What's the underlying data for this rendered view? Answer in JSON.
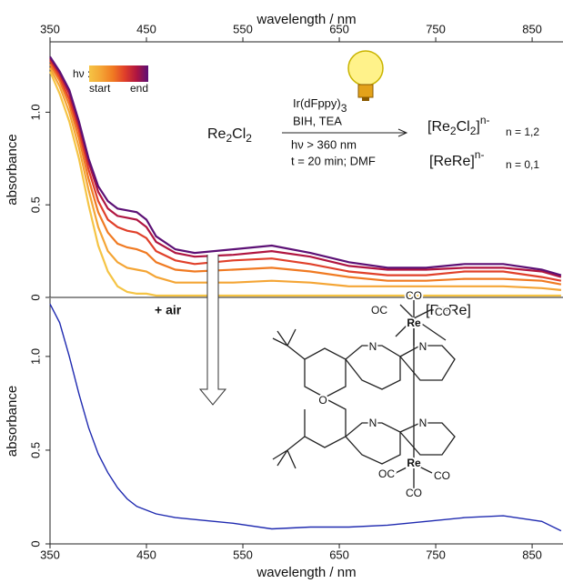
{
  "chart_data": [
    {
      "type": "line",
      "xlabel": "wavelength / nm",
      "ylabel": "absorbance",
      "x": [
        350,
        360,
        370,
        380,
        390,
        400,
        410,
        420,
        430,
        440,
        450,
        460,
        480,
        500,
        540,
        580,
        620,
        660,
        700,
        740,
        780,
        820,
        860,
        880
      ],
      "xlim": [
        350,
        882
      ],
      "xticks": [
        350,
        450,
        550,
        650,
        750,
        850
      ],
      "ylim": [
        0,
        1.38
      ],
      "yticks": [
        0,
        0.5,
        {
          "value": 1,
          "label": "1.0"
        }
      ],
      "series": [
        {
          "color": "#f5c445",
          "values": [
            1.22,
            1.1,
            0.95,
            0.75,
            0.5,
            0.28,
            0.14,
            0.06,
            0.03,
            0.02,
            0.02,
            0.01,
            0.01,
            0.01,
            0.01,
            0.01,
            0.01,
            0.01,
            0.01,
            0.01,
            0.01,
            0.01,
            0.01,
            0.01
          ]
        },
        {
          "color": "#f4a535",
          "values": [
            1.24,
            1.14,
            1.0,
            0.81,
            0.58,
            0.38,
            0.25,
            0.19,
            0.16,
            0.15,
            0.14,
            0.11,
            0.08,
            0.08,
            0.08,
            0.09,
            0.08,
            0.06,
            0.06,
            0.06,
            0.06,
            0.06,
            0.05,
            0.04
          ]
        },
        {
          "color": "#f07a22",
          "values": [
            1.26,
            1.17,
            1.04,
            0.86,
            0.64,
            0.46,
            0.35,
            0.29,
            0.27,
            0.26,
            0.24,
            0.19,
            0.15,
            0.14,
            0.15,
            0.16,
            0.14,
            0.11,
            0.09,
            0.09,
            0.1,
            0.1,
            0.09,
            0.07
          ]
        },
        {
          "color": "#e0402a",
          "values": [
            1.28,
            1.19,
            1.07,
            0.9,
            0.69,
            0.52,
            0.42,
            0.38,
            0.36,
            0.35,
            0.32,
            0.25,
            0.2,
            0.18,
            0.2,
            0.21,
            0.18,
            0.14,
            0.12,
            0.12,
            0.14,
            0.14,
            0.11,
            0.09
          ]
        },
        {
          "color": "#b01540",
          "values": [
            1.29,
            1.21,
            1.1,
            0.93,
            0.73,
            0.57,
            0.48,
            0.44,
            0.43,
            0.42,
            0.38,
            0.3,
            0.24,
            0.22,
            0.23,
            0.25,
            0.22,
            0.17,
            0.15,
            0.15,
            0.16,
            0.16,
            0.14,
            0.11
          ]
        },
        {
          "color": "#5c1075",
          "values": [
            1.3,
            1.22,
            1.12,
            0.95,
            0.75,
            0.6,
            0.52,
            0.48,
            0.47,
            0.46,
            0.42,
            0.33,
            0.26,
            0.24,
            0.26,
            0.28,
            0.24,
            0.19,
            0.16,
            0.16,
            0.18,
            0.18,
            0.15,
            0.12
          ]
        }
      ],
      "legend": {
        "title": "hν :",
        "start": "start",
        "end": "end"
      }
    },
    {
      "type": "line",
      "xlabel": "wavelength / nm",
      "ylabel": "absorbance",
      "x": [
        350,
        360,
        370,
        380,
        390,
        400,
        410,
        420,
        430,
        440,
        450,
        460,
        480,
        500,
        540,
        580,
        620,
        660,
        700,
        740,
        780,
        820,
        860,
        880
      ],
      "xlim": [
        350,
        882
      ],
      "xticks": [
        350,
        450,
        550,
        650,
        750,
        850
      ],
      "ylim": [
        0,
        1.31
      ],
      "yticks": [
        0,
        0.5,
        {
          "value": 1,
          "label": "1.0"
        }
      ],
      "series": [
        {
          "color": "#1f2ab0",
          "values": [
            1.28,
            1.18,
            1.0,
            0.8,
            0.62,
            0.48,
            0.38,
            0.3,
            0.24,
            0.2,
            0.18,
            0.16,
            0.14,
            0.13,
            0.11,
            0.08,
            0.09,
            0.09,
            0.1,
            0.12,
            0.14,
            0.15,
            0.12,
            0.07
          ]
        }
      ]
    }
  ],
  "scheme": {
    "reactant": [
      "Re",
      "2",
      "Cl",
      "2"
    ],
    "catalyst": [
      "Ir(dFppy)",
      "3"
    ],
    "reagents": "BIH, TEA",
    "light": "hν > 360 nm",
    "time": "t = 20 min; DMF",
    "product1": [
      "[Re",
      "2",
      "Cl",
      "2",
      "]",
      "n-"
    ],
    "n1": "n = 1,2",
    "product2": [
      "[ReRe]",
      "n-"
    ],
    "n2": "n = 0,1",
    "air": "+ air",
    "label": "[ReRe]",
    "atoms": [
      "CO",
      "OC",
      "CO",
      "Re",
      "N",
      "N",
      "O",
      "N",
      "N",
      "Re",
      "OC",
      "CO",
      "CO"
    ]
  }
}
